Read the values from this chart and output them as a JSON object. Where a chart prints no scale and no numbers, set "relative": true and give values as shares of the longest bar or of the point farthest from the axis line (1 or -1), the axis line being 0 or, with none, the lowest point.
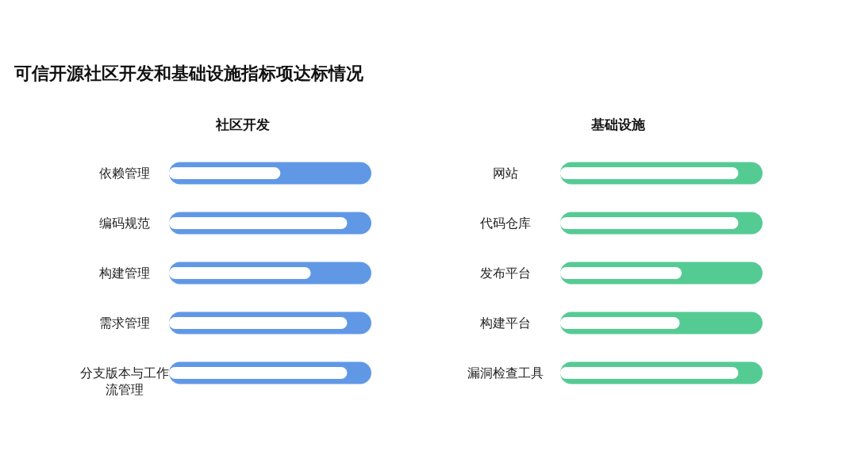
{
  "chart_data": [
    {
      "type": "other",
      "title": "可信开源社区开发和基础设施指标项达标情况"
    },
    {
      "type": "bar",
      "orientation": "horizontal",
      "relative": true,
      "title": "社区开发",
      "categories": [
        "依赖管理",
        "编码规范",
        "构建管理",
        "需求管理",
        "分支版本与工作流管理"
      ],
      "series": [
        {
          "color": "#6098e6",
          "values": [
            1,
            1,
            1,
            1,
            1
          ]
        },
        {
          "color": "#ffffff",
          "values": [
            0.55,
            0.88,
            0.7,
            0.88,
            0.88
          ]
        }
      ]
    },
    {
      "type": "bar",
      "orientation": "horizontal",
      "relative": true,
      "title": "基础设施",
      "categories": [
        "网站",
        "代码仓库",
        "发布平台",
        "构建平台",
        "漏洞检查工具"
      ],
      "series": [
        {
          "color": "#55cb94",
          "values": [
            1,
            1,
            1,
            1,
            1
          ]
        },
        {
          "color": "#ffffff",
          "values": [
            0.88,
            0.88,
            0.6,
            0.59,
            0.88
          ]
        }
      ]
    }
  ]
}
